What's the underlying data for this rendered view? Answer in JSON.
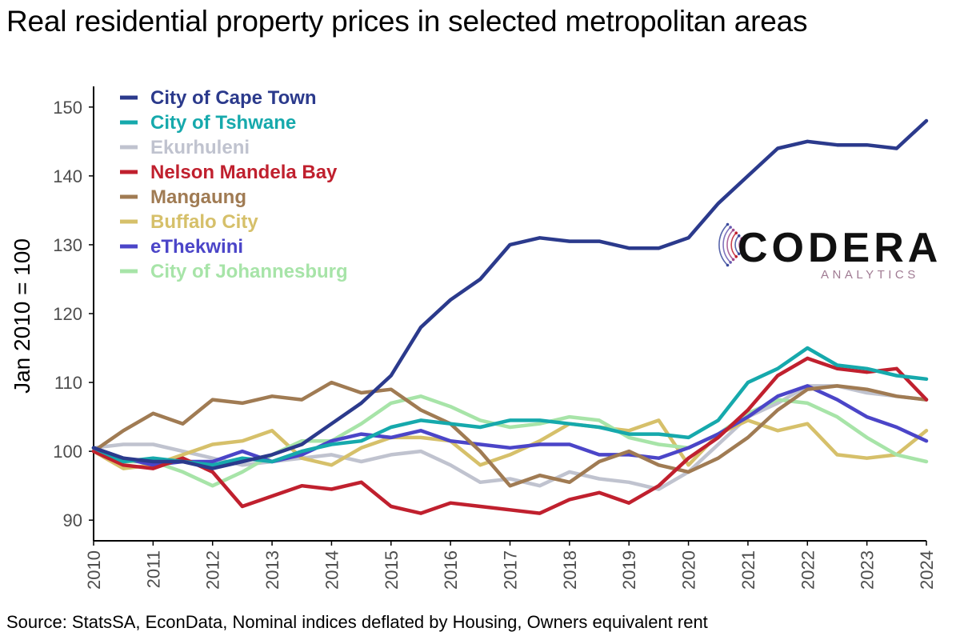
{
  "title": "Real residential property prices in selected metropolitan areas",
  "source": "Source: StatsSA, EconData, Nominal indices deflated by Housing, Owners equivalent rent",
  "logo": {
    "name": "CODERA",
    "sub": "ANALYTICS"
  },
  "chart_data": {
    "type": "line",
    "ylabel": "Jan 2010 = 100",
    "xlabel": "",
    "xlim": [
      2010,
      2024
    ],
    "ylim": [
      87,
      153
    ],
    "x_ticks": [
      "2010",
      "2011",
      "2012",
      "2013",
      "2014",
      "2015",
      "2016",
      "2017",
      "2018",
      "2019",
      "2020",
      "2021",
      "2022",
      "2023",
      "2024"
    ],
    "y_ticks": [
      90,
      100,
      110,
      120,
      130,
      140,
      150
    ],
    "grid": false,
    "legend_position": "top-left",
    "x": [
      2010,
      2010.5,
      2011,
      2011.5,
      2012,
      2012.5,
      2013,
      2013.5,
      2014,
      2014.5,
      2015,
      2015.5,
      2016,
      2016.5,
      2017,
      2017.5,
      2018,
      2018.5,
      2019,
      2019.5,
      2020,
      2020.5,
      2021,
      2021.5,
      2022,
      2022.5,
      2023,
      2023.5,
      2024
    ],
    "series": [
      {
        "name": "City of Cape Town",
        "color": "#2b3a8c",
        "values": [
          100.5,
          99,
          98.5,
          98.5,
          97.5,
          98.5,
          99.5,
          101,
          104,
          107,
          111,
          118,
          122,
          125,
          130,
          131,
          130.5,
          130.5,
          129.5,
          129.5,
          131,
          136,
          140,
          144,
          145,
          144.5,
          144.5,
          144,
          148
        ]
      },
      {
        "name": "City of Tshwane",
        "color": "#16a9ac",
        "values": [
          100.5,
          98.5,
          99,
          98.5,
          98,
          99,
          98.5,
          100,
          101,
          101.5,
          103.5,
          104.5,
          104,
          103.5,
          104.5,
          104.5,
          104,
          103.5,
          102.5,
          102.5,
          102,
          104.5,
          110,
          112,
          115,
          112.5,
          112,
          111,
          110.5
        ]
      },
      {
        "name": "Ekurhuleni",
        "color": "#c0c3cf",
        "values": [
          100.5,
          101,
          101,
          100,
          99,
          98,
          98.5,
          99,
          99.5,
          98.5,
          99.5,
          100,
          98,
          95.5,
          96,
          95,
          97,
          96,
          95.5,
          94.5,
          97,
          101,
          105,
          107,
          109.5,
          109.5,
          108.5,
          108,
          107.5
        ]
      },
      {
        "name": "Nelson Mandela Bay",
        "color": "#c0202e",
        "values": [
          100,
          98,
          97.5,
          99,
          97,
          92,
          93.5,
          95,
          94.5,
          95.5,
          92,
          91,
          92.5,
          92,
          91.5,
          91,
          93,
          94,
          92.5,
          95,
          99,
          102,
          106,
          111,
          113.5,
          112,
          111.5,
          112,
          107.5
        ]
      },
      {
        "name": "Mangaung",
        "color": "#a07b53",
        "values": [
          100,
          103,
          105.5,
          104,
          107.5,
          107,
          108,
          107.5,
          110,
          108.5,
          109,
          106,
          104,
          100,
          95,
          96.5,
          95.5,
          98.5,
          100,
          98,
          97,
          99,
          102,
          106,
          109,
          109.5,
          109,
          108,
          107.5
        ]
      },
      {
        "name": "Buffalo City",
        "color": "#d6c06a",
        "values": [
          100,
          97.5,
          98,
          99.5,
          101,
          101.5,
          103,
          99,
          98,
          100.5,
          102,
          102,
          101.5,
          98,
          99.5,
          101.5,
          104,
          103.5,
          103,
          104.5,
          98,
          102.5,
          104.5,
          103,
          104,
          99.5,
          99,
          99.5,
          103
        ]
      },
      {
        "name": "eThekwini",
        "color": "#4b45c8",
        "values": [
          100.5,
          99,
          98,
          98.5,
          98.5,
          100,
          98.5,
          99.5,
          101.5,
          102.5,
          102,
          103,
          101.5,
          101,
          100.5,
          101,
          101,
          99.5,
          99.5,
          99,
          100.5,
          102.5,
          105,
          108,
          109.5,
          107.5,
          105,
          103.5,
          101.5
        ]
      },
      {
        "name": "City of Johannesburg",
        "color": "#a7e4a8",
        "values": [
          100.5,
          98.5,
          98.5,
          97,
          95,
          97,
          99.5,
          101.5,
          101.5,
          104,
          107,
          108,
          106.5,
          104.5,
          103.5,
          104,
          105,
          104.5,
          102,
          101,
          100.5,
          102.5,
          105.5,
          107.5,
          107,
          105,
          102,
          99.5,
          98.5
        ]
      }
    ]
  }
}
